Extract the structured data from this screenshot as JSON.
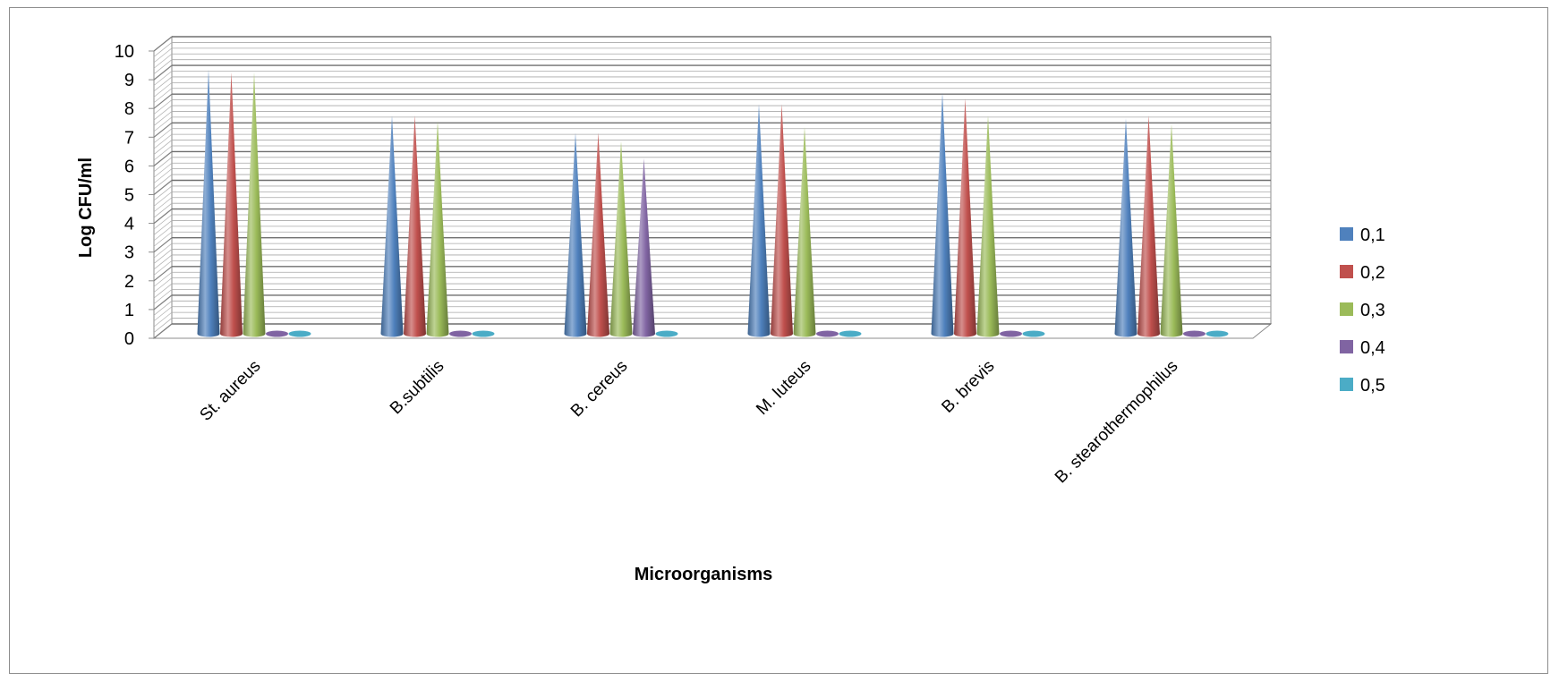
{
  "chart_data": {
    "type": "bar",
    "shape": "cone",
    "title": "",
    "xlabel": "Microorganisms",
    "ylabel": "Log CFU/ml",
    "ylim": [
      0,
      10
    ],
    "yticks": [
      "0",
      "1",
      "2",
      "3",
      "4",
      "5",
      "6",
      "7",
      "8",
      "9",
      "10"
    ],
    "grid": true,
    "legend_position": "right",
    "categories": [
      "St. aureus",
      "B.subtilis",
      "B. cereus",
      "M. luteus",
      "B. brevis",
      "B. stearothermophilus"
    ],
    "series": [
      {
        "name": "0,1",
        "color": "#4F81BD",
        "values": [
          9.2,
          7.6,
          7.0,
          8.0,
          8.4,
          7.5
        ]
      },
      {
        "name": "0,2",
        "color": "#C0504D",
        "values": [
          9.1,
          7.6,
          7.0,
          8.0,
          8.2,
          7.6
        ]
      },
      {
        "name": "0,3",
        "color": "#9BBB59",
        "values": [
          9.1,
          7.4,
          6.7,
          7.2,
          7.6,
          7.3
        ]
      },
      {
        "name": "0,4",
        "color": "#8064A2",
        "values": [
          0,
          0,
          6.1,
          0,
          0,
          0
        ]
      },
      {
        "name": "0,5",
        "color": "#4BACC6",
        "values": [
          0,
          0,
          0,
          0,
          0,
          0
        ]
      }
    ]
  }
}
